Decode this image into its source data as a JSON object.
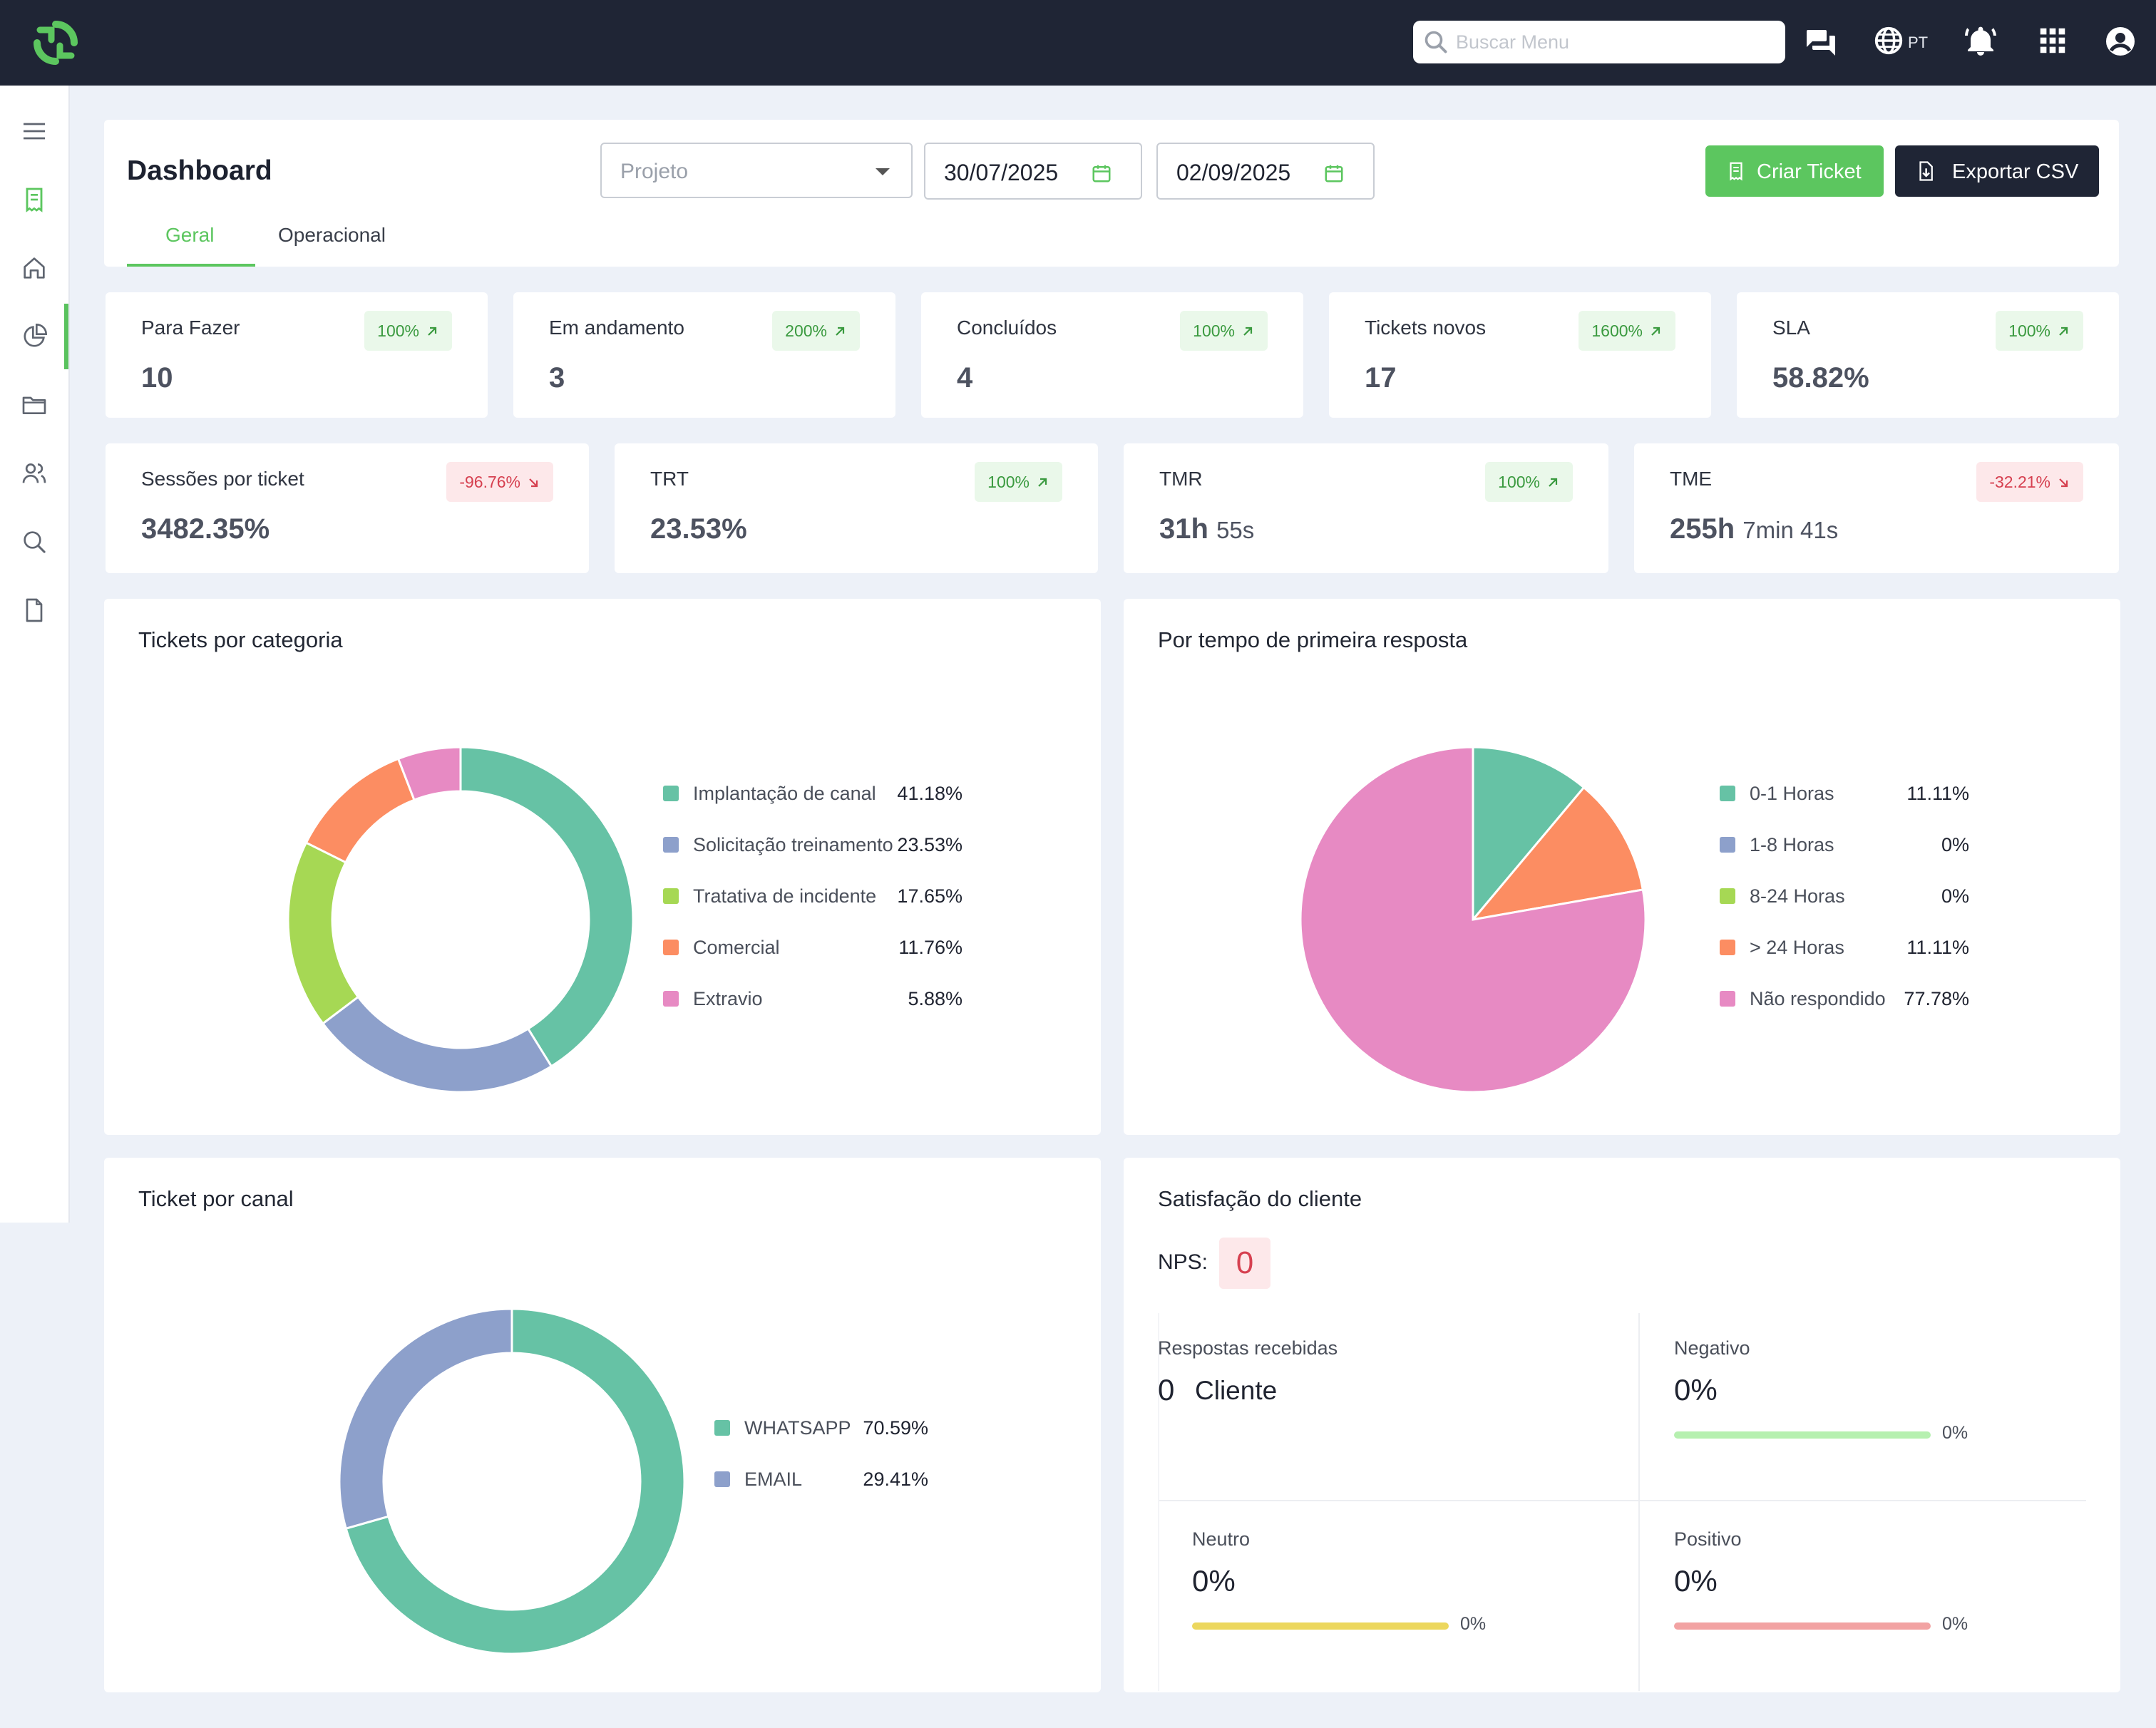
{
  "topbar": {
    "search_placeholder": "Buscar Menu",
    "language": "PT",
    "icons": [
      "chat-icon",
      "globe-icon",
      "bell-icon",
      "apps-grid-icon",
      "account-icon"
    ]
  },
  "sidebar": {
    "items": [
      "menu-icon",
      "ticket-icon",
      "home-icon",
      "pie-chart-icon",
      "folder-icon",
      "users-icon",
      "search-icon",
      "document-icon"
    ],
    "active": "pie-chart-icon"
  },
  "header": {
    "title": "Dashboard",
    "project_placeholder": "Projeto",
    "date_from": "30/07/2025",
    "date_to": "02/09/2025",
    "create_ticket_label": "Criar Ticket",
    "export_csv_label": "Exportar CSV",
    "tabs": [
      {
        "label": "Geral",
        "active": true
      },
      {
        "label": "Operacional",
        "active": false
      }
    ]
  },
  "kpis_row1": [
    {
      "label": "Para Fazer",
      "value": "10",
      "badge": "100%",
      "trend": "up"
    },
    {
      "label": "Em andamento",
      "value": "3",
      "badge": "200%",
      "trend": "up"
    },
    {
      "label": "Concluídos",
      "value": "4",
      "badge": "100%",
      "trend": "up"
    },
    {
      "label": "Tickets novos",
      "value": "17",
      "badge": "1600%",
      "trend": "up"
    },
    {
      "label": "SLA",
      "value": "58.82%",
      "badge": "100%",
      "trend": "up"
    }
  ],
  "kpis_row2": [
    {
      "label": "Sessões por ticket",
      "value": "3482.35%",
      "badge": "-96.76%",
      "trend": "down"
    },
    {
      "label": "TRT",
      "value": "23.53%",
      "badge": "100%",
      "trend": "up"
    },
    {
      "label": "TMR",
      "value_main": "31h",
      "value_sub": "55s",
      "badge": "100%",
      "trend": "up"
    },
    {
      "label": "TME",
      "value_main": "255h",
      "value_sub": "7min 41s",
      "badge": "-32.21%",
      "trend": "down"
    }
  ],
  "colors": {
    "accent_green": "#5cc65f",
    "dark": "#1f2535",
    "teal": "#66c2a5",
    "blue": "#8da0cb",
    "lime": "#a6d854",
    "orange": "#fc8d62",
    "pink": "#e78ac3"
  },
  "chart_data": [
    {
      "type": "pie",
      "variant": "donut",
      "title": "Tickets por categoria",
      "series": [
        {
          "name": "Implantação de canal",
          "value": 41.18,
          "label": "41.18%",
          "color": "#66c2a5"
        },
        {
          "name": "Solicitação treinamento",
          "value": 23.53,
          "label": "23.53%",
          "color": "#8da0cb"
        },
        {
          "name": "Tratativa de incidente",
          "value": 17.65,
          "label": "17.65%",
          "color": "#a6d854"
        },
        {
          "name": "Comercial",
          "value": 11.76,
          "label": "11.76%",
          "color": "#fc8d62"
        },
        {
          "name": "Extravio",
          "value": 5.88,
          "label": "5.88%",
          "color": "#e78ac3"
        }
      ]
    },
    {
      "type": "pie",
      "title": "Por tempo de primeira resposta",
      "series": [
        {
          "name": "0-1 Horas",
          "value": 11.11,
          "label": "11.11%",
          "color": "#66c2a5"
        },
        {
          "name": "1-8 Horas",
          "value": 0,
          "label": "0%",
          "color": "#8da0cb"
        },
        {
          "name": "8-24 Horas",
          "value": 0,
          "label": "0%",
          "color": "#a6d854"
        },
        {
          "name": "> 24 Horas",
          "value": 11.11,
          "label": "11.11%",
          "color": "#fc8d62"
        },
        {
          "name": "Não respondido",
          "value": 77.78,
          "label": "77.78%",
          "color": "#e78ac3"
        }
      ]
    },
    {
      "type": "pie",
      "variant": "donut",
      "title": "Ticket por canal",
      "series": [
        {
          "name": "WHATSAPP",
          "value": 70.59,
          "label": "70.59%",
          "color": "#66c2a5"
        },
        {
          "name": "EMAIL",
          "value": 29.41,
          "label": "29.41%",
          "color": "#8da0cb"
        }
      ]
    }
  ],
  "satisfaction": {
    "title": "Satisfação do cliente",
    "nps_label": "NPS:",
    "nps_value": "0",
    "received_label": "Respostas recebidas",
    "received_value": "0",
    "received_unit": "Cliente",
    "cells": [
      {
        "label": "Negativo",
        "value": "0%",
        "bar_pct": "0%",
        "fraction": 0,
        "color": "#b6f0b0"
      },
      {
        "label": "Neutro",
        "value": "0%",
        "bar_pct": "0%",
        "fraction": 0,
        "color": "#ecd75e"
      },
      {
        "label": "Positivo",
        "value": "0%",
        "bar_pct": "0%",
        "fraction": 0,
        "color": "#f2a3a3"
      }
    ]
  }
}
